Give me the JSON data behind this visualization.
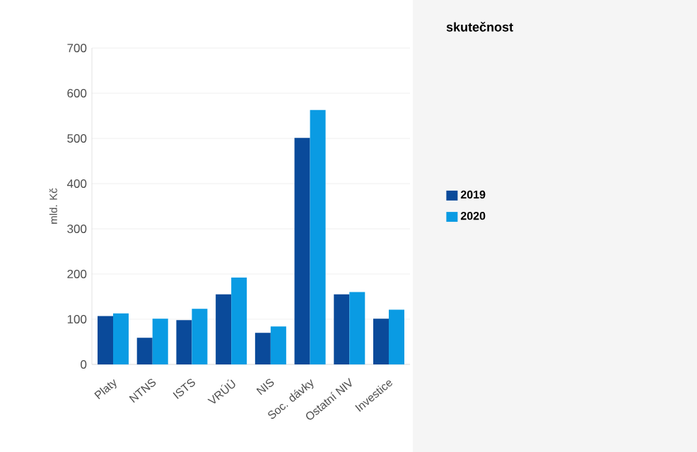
{
  "chart_data": {
    "type": "bar",
    "title": "skutečnost",
    "ylabel": "mld. Kč",
    "categories": [
      "Platy",
      "NTNS",
      "ISTS",
      "VRÚÚ",
      "NIS",
      "Soc. dávky",
      "Ostatní NIV",
      "Investice"
    ],
    "series": [
      {
        "name": "2019",
        "color": "#0a4a9a",
        "values": [
          107,
          59,
          98,
          155,
          70,
          501,
          155,
          101
        ]
      },
      {
        "name": "2020",
        "color": "#0a9be3",
        "values": [
          113,
          101,
          123,
          192,
          84,
          563,
          160,
          121
        ]
      }
    ],
    "ylim": [
      0,
      700
    ],
    "yticks": [
      0,
      100,
      200,
      300,
      400,
      500,
      600,
      700
    ],
    "grid": "y",
    "legend": "right"
  }
}
